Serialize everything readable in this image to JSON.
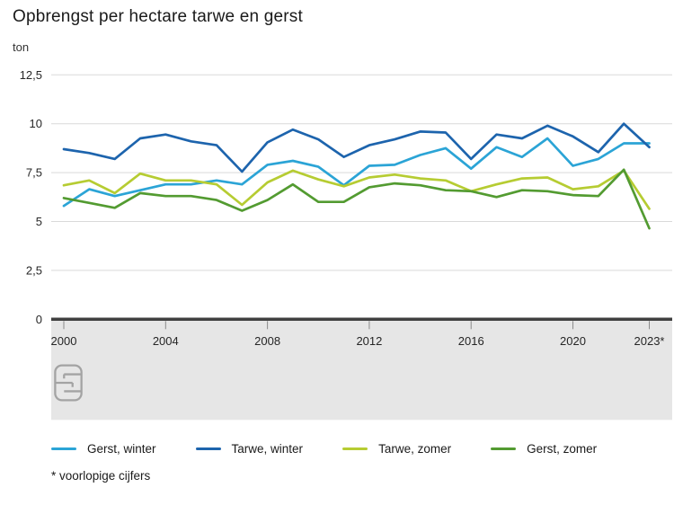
{
  "header": {
    "title": "Opbrengst per hectare tarwe en gerst",
    "unit_label": "ton"
  },
  "footnote": "* voorlopige cijfers",
  "branding": {
    "logo_name": "cbs-logo"
  },
  "colors": {
    "band": "#e6e6e6",
    "grid": "#d9d9d9",
    "axis": "#404040",
    "tick": "#8a8a8a",
    "axis_text": "#262626",
    "title_text": "#1a1a1a",
    "logo": "#a3a3a3"
  },
  "chart_data": {
    "type": "line",
    "title": "Opbrengst per hectare tarwe en gerst",
    "xlabel": "",
    "ylabel": "ton",
    "ylim": [
      0,
      12.5
    ],
    "yticks": [
      0,
      2.5,
      5,
      7.5,
      10,
      12.5
    ],
    "ytick_labels": [
      "0",
      "2,5",
      "5",
      "7,5",
      "10",
      "12,5"
    ],
    "x": [
      2000,
      2001,
      2002,
      2003,
      2004,
      2005,
      2006,
      2007,
      2008,
      2009,
      2010,
      2011,
      2012,
      2013,
      2014,
      2015,
      2016,
      2017,
      2018,
      2019,
      2020,
      2021,
      2022,
      2023
    ],
    "xtick_years": [
      2000,
      2004,
      2008,
      2012,
      2016,
      2020,
      2023
    ],
    "xtick_labels": [
      "2000",
      "2004",
      "2008",
      "2012",
      "2016",
      "2020",
      "2023*"
    ],
    "grid": "horizontal-only",
    "legend_position": "bottom",
    "series": [
      {
        "name": "Gerst, winter",
        "color": "#2ba4d6",
        "values": [
          5.8,
          6.65,
          6.3,
          6.6,
          6.9,
          6.9,
          7.1,
          6.9,
          7.9,
          8.1,
          7.8,
          6.85,
          7.85,
          7.9,
          8.4,
          8.75,
          7.7,
          8.8,
          8.3,
          9.25,
          7.85,
          8.2,
          9.0,
          9.0
        ]
      },
      {
        "name": "Tarwe, winter",
        "color": "#1d64ad",
        "values": [
          8.7,
          8.5,
          8.2,
          9.25,
          9.45,
          9.1,
          8.9,
          7.55,
          9.05,
          9.7,
          9.2,
          8.3,
          8.9,
          9.2,
          9.6,
          9.55,
          8.2,
          9.45,
          9.25,
          9.9,
          9.35,
          8.55,
          10.0,
          8.8
        ]
      },
      {
        "name": "Tarwe, zomer",
        "color": "#b6cc32",
        "values": [
          6.85,
          7.1,
          6.45,
          7.45,
          7.1,
          7.1,
          6.9,
          5.85,
          7.0,
          7.6,
          7.15,
          6.8,
          7.25,
          7.4,
          7.2,
          7.1,
          6.55,
          6.9,
          7.2,
          7.25,
          6.65,
          6.8,
          7.6,
          5.65
        ]
      },
      {
        "name": "Gerst, zomer",
        "color": "#539b31",
        "values": [
          6.2,
          5.95,
          5.7,
          6.45,
          6.3,
          6.3,
          6.1,
          5.55,
          6.1,
          6.9,
          6.0,
          6.0,
          6.75,
          6.95,
          6.85,
          6.6,
          6.55,
          6.25,
          6.6,
          6.55,
          6.35,
          6.3,
          7.65,
          4.65
        ]
      }
    ]
  }
}
